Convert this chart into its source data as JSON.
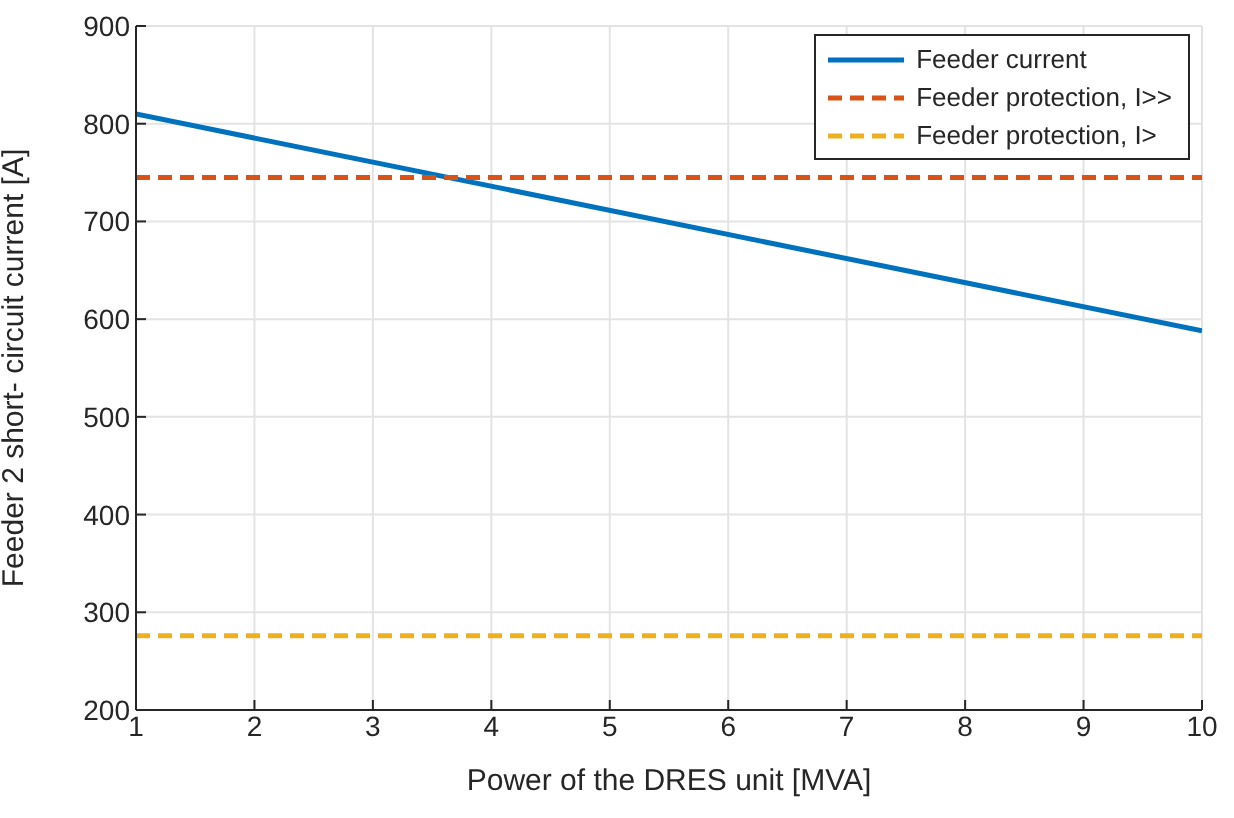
{
  "chart_data": {
    "type": "line",
    "xlabel": "Power of the DRES unit [MVA]",
    "ylabel": "Feeder 2 short- circuit current [A]",
    "x": [
      1,
      10
    ],
    "series": [
      {
        "name": "Feeder current",
        "color": "#0072bd",
        "values": [
          810,
          588
        ],
        "line_style": "solid"
      },
      {
        "name": "Feeder protection, I>>",
        "color": "#d95319",
        "values": [
          745,
          745
        ],
        "line_style": "dashed"
      },
      {
        "name": "Feeder protection, I>",
        "color": "#edb120",
        "values": [
          276,
          276
        ],
        "line_style": "dashed"
      }
    ],
    "xlim": [
      1,
      10
    ],
    "xticks": [
      1,
      2,
      3,
      4,
      5,
      6,
      7,
      8,
      9,
      10
    ],
    "ylim": [
      200,
      900
    ],
    "yticks": [
      200,
      300,
      400,
      500,
      600,
      700,
      800,
      900
    ],
    "grid": true,
    "legend": "top right",
    "marker": "none"
  }
}
